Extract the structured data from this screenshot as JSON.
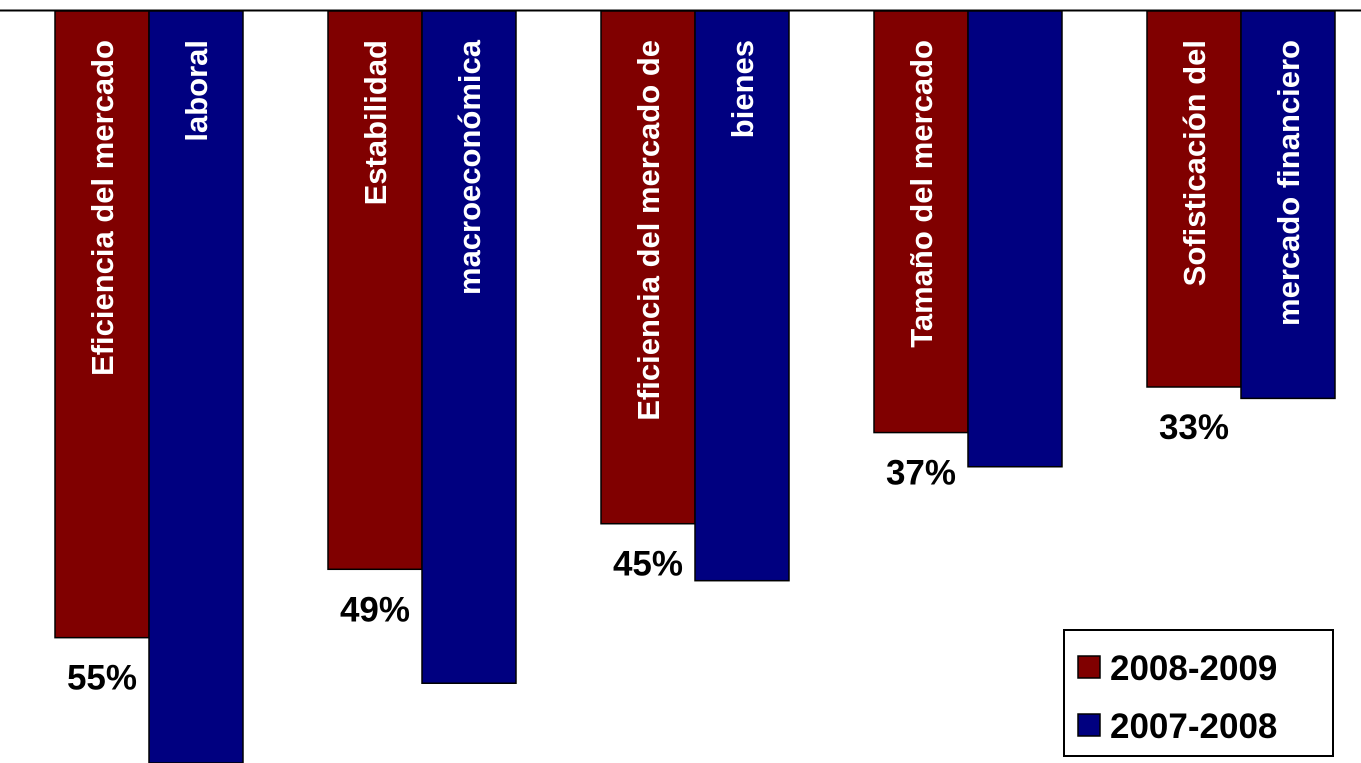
{
  "chart_data": {
    "type": "bar",
    "orientation": "inverted",
    "categories": [
      [
        "Eficiencia del mercado",
        "laboral"
      ],
      [
        "Estabilidad",
        "macroeconómica"
      ],
      [
        "Eficiencia del mercado de",
        "bienes"
      ],
      [
        "Tamaño del mercado",
        ""
      ],
      [
        "Sofisticación del",
        "mercado financiero"
      ]
    ],
    "series": [
      {
        "name": "2008-2009",
        "color": "#800000",
        "values": [
          55,
          49,
          45,
          37,
          33
        ]
      },
      {
        "name": "2007-2008",
        "color": "#000080",
        "values": [
          66,
          59,
          50,
          40,
          34
        ]
      }
    ],
    "data_labels": [
      "55%",
      "49%",
      "45%",
      "37%",
      "33%"
    ],
    "ylim": [
      0,
      66
    ],
    "legend_position": "bottom-right"
  }
}
